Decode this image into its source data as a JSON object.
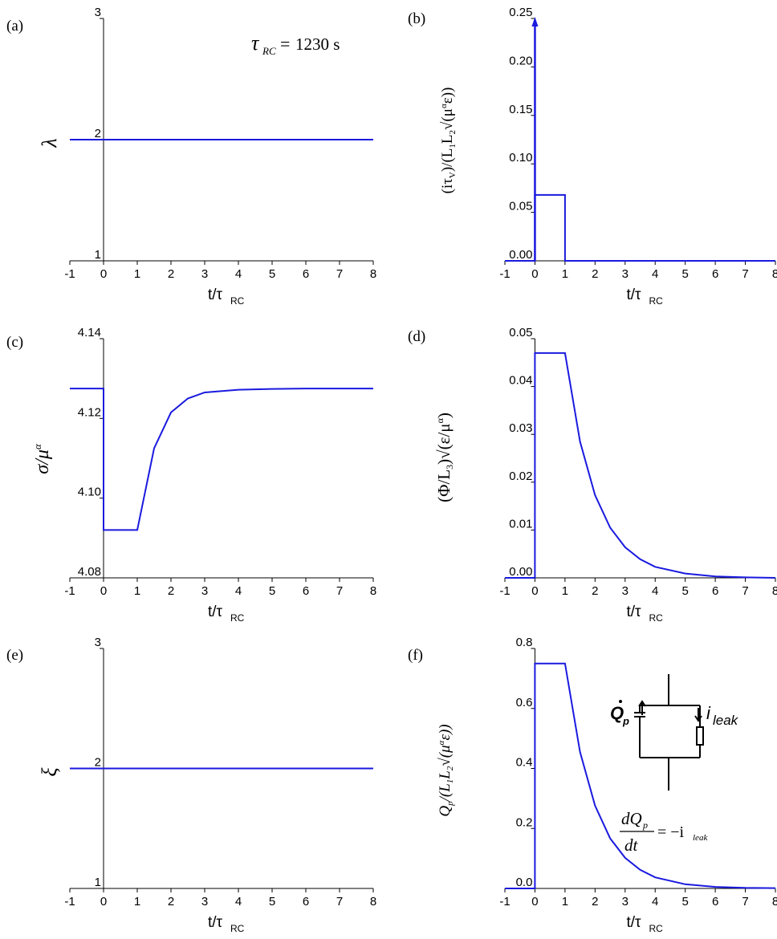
{
  "colors": {
    "series": "#1a1adf",
    "axis": "#000000",
    "background": "#ffffff"
  },
  "tau_annotation": "1230 s",
  "circuit": {
    "source_label": "Q",
    "source_subscript": "p",
    "leak_label": "i",
    "leak_subscript": "leak",
    "equation_num": "dQ",
    "equation_num_sub": "p",
    "equation_den": "dt",
    "equation_rhs": "= −i",
    "equation_rhs_sub": "leak"
  },
  "chart_data": [
    {
      "id": "a",
      "panel_label": "(a)",
      "type": "line",
      "xlabel": "t/τ",
      "xlabel_sub": "RC",
      "ylabel": "λ",
      "xlim": [
        -1,
        8
      ],
      "ylim": [
        1,
        3
      ],
      "xticks": [
        "-1",
        "0",
        "1",
        "2",
        "3",
        "4",
        "5",
        "6",
        "7",
        "8"
      ],
      "yticks": [
        "1",
        "2",
        "3"
      ],
      "grid": false,
      "series": [
        {
          "x": [
            -1,
            8
          ],
          "y": [
            2,
            2
          ]
        }
      ]
    },
    {
      "id": "b",
      "panel_label": "(b)",
      "type": "line",
      "xlabel": "t/τ",
      "xlabel_sub": "RC",
      "ylabel": "(iτV)/(L1L2√(μαε))",
      "xlim": [
        -1,
        8
      ],
      "ylim": [
        0,
        0.25
      ],
      "xticks": [
        "-1",
        "0",
        "1",
        "2",
        "3",
        "4",
        "5",
        "6",
        "7",
        "8"
      ],
      "yticks": [
        "0.00",
        "0.05",
        "0.10",
        "0.15",
        "0.20",
        "0.25"
      ],
      "grid": false,
      "series": [
        {
          "x": [
            -1,
            0,
            0,
            1,
            1,
            8
          ],
          "y": [
            0,
            0,
            0.068,
            0.068,
            0,
            0
          ]
        }
      ],
      "impulse": {
        "x": 0,
        "y": 0.25
      }
    },
    {
      "id": "c",
      "panel_label": "(c)",
      "type": "line",
      "xlabel": "t/τ",
      "xlabel_sub": "RC",
      "ylabel": "σ/μα",
      "xlim": [
        -1,
        8
      ],
      "ylim": [
        4.08,
        4.14
      ],
      "xticks": [
        "-1",
        "0",
        "1",
        "2",
        "3",
        "4",
        "5",
        "6",
        "7",
        "8"
      ],
      "yticks": [
        "4.08",
        "4.10",
        "4.12",
        "4.14"
      ],
      "grid": false,
      "series": [
        {
          "x": [
            -1,
            0,
            0,
            1,
            1.5,
            2,
            2.5,
            3,
            4,
            5,
            6,
            7,
            8
          ],
          "y": [
            4.1275,
            4.1275,
            4.092,
            4.092,
            4.1125,
            4.1215,
            4.125,
            4.1265,
            4.1272,
            4.1274,
            4.1275,
            4.1275,
            4.1275
          ]
        }
      ]
    },
    {
      "id": "d",
      "panel_label": "(d)",
      "type": "line",
      "xlabel": "t/τ",
      "xlabel_sub": "RC",
      "ylabel": "(Φ/L3)√(ε/μα)",
      "xlim": [
        -1,
        8
      ],
      "ylim": [
        0,
        0.05
      ],
      "xticks": [
        "-1",
        "0",
        "1",
        "2",
        "3",
        "4",
        "5",
        "6",
        "7",
        "8"
      ],
      "yticks": [
        "0.00",
        "0.01",
        "0.02",
        "0.03",
        "0.04",
        "0.05"
      ],
      "grid": false,
      "series": [
        {
          "x": [
            -1,
            0,
            0,
            1,
            1.5,
            2,
            2.5,
            3,
            3.5,
            4,
            5,
            6,
            7,
            8
          ],
          "y": [
            0,
            0,
            0.047,
            0.047,
            0.0285,
            0.0173,
            0.0105,
            0.0064,
            0.0039,
            0.0023,
            0.0009,
            0.0003,
            0.0001,
            0
          ]
        }
      ]
    },
    {
      "id": "e",
      "panel_label": "(e)",
      "type": "line",
      "xlabel": "t/τ",
      "xlabel_sub": "RC",
      "ylabel": "ξ",
      "xlim": [
        -1,
        8
      ],
      "ylim": [
        1,
        3
      ],
      "xticks": [
        "-1",
        "0",
        "1",
        "2",
        "3",
        "4",
        "5",
        "6",
        "7",
        "8"
      ],
      "yticks": [
        "1",
        "2",
        "3"
      ],
      "grid": false,
      "series": [
        {
          "x": [
            -1,
            8
          ],
          "y": [
            2,
            2
          ]
        }
      ]
    },
    {
      "id": "f",
      "panel_label": "(f)",
      "type": "line",
      "xlabel": "t/τ",
      "xlabel_sub": "RC",
      "ylabel": "Qp/(L1L2√(μαε))",
      "xlim": [
        -1,
        8
      ],
      "ylim": [
        0,
        0.8
      ],
      "xticks": [
        "-1",
        "0",
        "1",
        "2",
        "3",
        "4",
        "5",
        "6",
        "7",
        "8"
      ],
      "yticks": [
        "0.0",
        "0.2",
        "0.4",
        "0.6",
        "0.8"
      ],
      "grid": false,
      "series": [
        {
          "x": [
            -1,
            0,
            0,
            1,
            1.5,
            2,
            2.5,
            3,
            3.5,
            4,
            5,
            6,
            7,
            8
          ],
          "y": [
            0,
            0,
            0.75,
            0.75,
            0.455,
            0.276,
            0.167,
            0.102,
            0.062,
            0.037,
            0.014,
            0.005,
            0.002,
            0.001
          ]
        }
      ]
    }
  ]
}
